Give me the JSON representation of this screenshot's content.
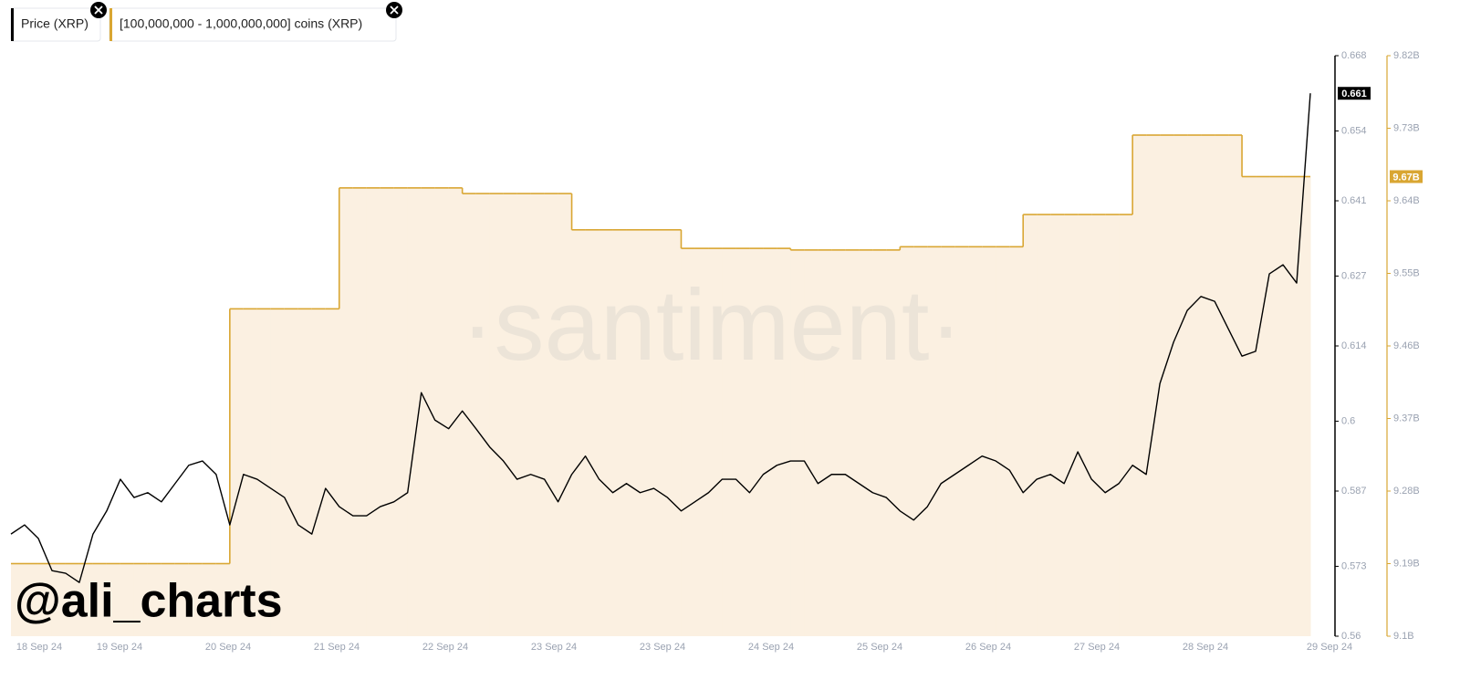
{
  "chart_data": {
    "type": "line",
    "watermark": "·santiment·",
    "handle": "@ali_charts",
    "x_labels": [
      "18 Sep 24",
      "19 Sep 24",
      "20 Sep 24",
      "21 Sep 24",
      "22 Sep 24",
      "23 Sep 24",
      "23 Sep 24",
      "24 Sep 24",
      "25 Sep 24",
      "26 Sep 24",
      "27 Sep 24",
      "28 Sep 24",
      "29 Sep 24"
    ],
    "ylim": [
      0.56,
      0.668
    ],
    "yticks": [
      0.668,
      0.654,
      0.641,
      0.627,
      0.614,
      0.6,
      0.587,
      0.573,
      0.56
    ],
    "y2lim": [
      9100000000,
      9820000000
    ],
    "y2ticks": [
      {
        "value": 9820000000,
        "label": "9.82B"
      },
      {
        "value": 9730000000,
        "label": "9.73B"
      },
      {
        "value": 9640000000,
        "label": "9.64B"
      },
      {
        "value": 9550000000,
        "label": "9.55B"
      },
      {
        "value": 9460000000,
        "label": "9.46B"
      },
      {
        "value": 9370000000,
        "label": "9.37B"
      },
      {
        "value": 9280000000,
        "label": "9.28B"
      },
      {
        "value": 9190000000,
        "label": "9.19B"
      },
      {
        "value": 9100000000,
        "label": "9.1B"
      }
    ],
    "series": [
      {
        "name": "Price (XRP)",
        "color": "#000000",
        "axis": "y",
        "values": [
          0.579,
          0.5807,
          0.5782,
          0.5722,
          0.5717,
          0.57,
          0.579,
          0.5833,
          0.5892,
          0.5858,
          0.5867,
          0.585,
          0.5884,
          0.5918,
          0.5926,
          0.5901,
          0.5807,
          0.5901,
          0.5892,
          0.5875,
          0.5858,
          0.5807,
          0.579,
          0.5875,
          0.5841,
          0.5824,
          0.5824,
          0.5841,
          0.585,
          0.5867,
          0.6053,
          0.6002,
          0.5986,
          0.6019,
          0.5986,
          0.5952,
          0.5926,
          0.5892,
          0.5901,
          0.5892,
          0.585,
          0.5901,
          0.5935,
          0.5892,
          0.5867,
          0.5884,
          0.5867,
          0.5875,
          0.5858,
          0.5833,
          0.585,
          0.5867,
          0.5892,
          0.5892,
          0.5867,
          0.5901,
          0.5918,
          0.5926,
          0.5926,
          0.5884,
          0.5901,
          0.5901,
          0.5884,
          0.5867,
          0.5858,
          0.5833,
          0.5816,
          0.5841,
          0.5884,
          0.5901,
          0.5918,
          0.5935,
          0.5926,
          0.5909,
          0.5867,
          0.5892,
          0.5901,
          0.5884,
          0.5943,
          0.5892,
          0.5867,
          0.5884,
          0.5918,
          0.5901,
          0.607,
          0.6147,
          0.6206,
          0.6232,
          0.6223,
          0.6172,
          0.6121,
          0.613,
          0.6274,
          0.6291,
          0.6257,
          0.661
        ]
      },
      {
        "name": "[100,000,000 - 1,000,000,000] coins (XRP)",
        "color": "#d9a632",
        "axis": "y2",
        "values": [
          9190000000,
          9190000000,
          9190000000,
          9190000000,
          9190000000,
          9190000000,
          9190000000,
          9190000000,
          9190000000,
          9190000000,
          9190000000,
          9190000000,
          9190000000,
          9190000000,
          9190000000,
          9190000000,
          9506000000,
          9506000000,
          9506000000,
          9506000000,
          9506000000,
          9506000000,
          9506000000,
          9506000000,
          9656000000,
          9656000000,
          9656000000,
          9656000000,
          9656000000,
          9656000000,
          9656000000,
          9656000000,
          9656000000,
          9649000000,
          9649000000,
          9649000000,
          9649000000,
          9649000000,
          9649000000,
          9649000000,
          9649000000,
          9604000000,
          9604000000,
          9604000000,
          9604000000,
          9604000000,
          9604000000,
          9604000000,
          9604000000,
          9581000000,
          9581000000,
          9581000000,
          9581000000,
          9581000000,
          9581000000,
          9581000000,
          9581000000,
          9579000000,
          9579000000,
          9579000000,
          9579000000,
          9579000000,
          9579000000,
          9579000000,
          9579000000,
          9583000000,
          9583000000,
          9583000000,
          9583000000,
          9583000000,
          9583000000,
          9583000000,
          9583000000,
          9583000000,
          9623000000,
          9623000000,
          9623000000,
          9623000000,
          9623000000,
          9623000000,
          9623000000,
          9623000000,
          9721500000,
          9721500000,
          9721500000,
          9721500000,
          9721500000,
          9721500000,
          9721500000,
          9721500000,
          9670000000,
          9670000000,
          9670000000,
          9670000000,
          9670000000,
          9670000000
        ],
        "value_labels": [
          null,
          null,
          null,
          null,
          null,
          null,
          null,
          null,
          null,
          null,
          null,
          null,
          null,
          null,
          null,
          null,
          null,
          null,
          null,
          null,
          null,
          null,
          null,
          null,
          null,
          null,
          null,
          null,
          null,
          null,
          null,
          null,
          null,
          null,
          null,
          null,
          null,
          null,
          null,
          null,
          null,
          null,
          null,
          null,
          null,
          null,
          null,
          null,
          null,
          null,
          null,
          null,
          null,
          null,
          null,
          null,
          null,
          null,
          null,
          null,
          null,
          null,
          null,
          null,
          null,
          null,
          null,
          null,
          null,
          null,
          null,
          null,
          null,
          null,
          null,
          null,
          null,
          null,
          null,
          null,
          null,
          null,
          null,
          null,
          null,
          null,
          null,
          null,
          null,
          null,
          null,
          null,
          null,
          null,
          null,
          "9.67B"
        ]
      }
    ]
  }
}
